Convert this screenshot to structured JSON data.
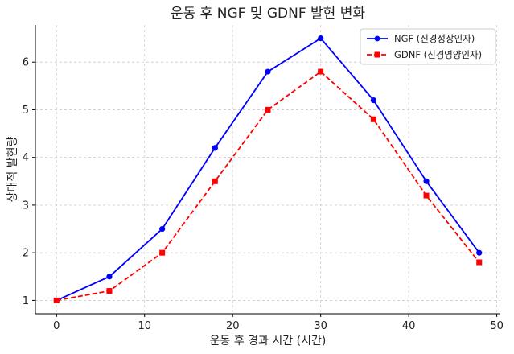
{
  "chart_data": {
    "type": "line",
    "title": "운동 후 NGF 및 GDNF 발현 변화",
    "xlabel": "운동 후 경과 시간 (시간)",
    "ylabel": "상대적 발현량",
    "xlim": [
      -2.4,
      50.4
    ],
    "ylim": [
      0.72,
      6.78
    ],
    "x_ticks": [
      0,
      10,
      20,
      30,
      40,
      50
    ],
    "y_ticks": [
      1,
      2,
      3,
      4,
      5,
      6
    ],
    "grid": true,
    "legend_position": "top-right",
    "x": [
      0,
      6,
      12,
      18,
      24,
      30,
      36,
      42,
      48
    ],
    "series": [
      {
        "name": "NGF (신경성장인자)",
        "values": [
          1.0,
          1.5,
          2.5,
          4.2,
          5.8,
          6.5,
          5.2,
          3.5,
          2.0
        ],
        "color": "#0000ff",
        "line_style": "solid",
        "marker": "circle"
      },
      {
        "name": "GDNF (신경영양인자)",
        "values": [
          1.0,
          1.2,
          2.0,
          3.5,
          5.0,
          5.8,
          4.8,
          3.2,
          1.8
        ],
        "color": "#ff0000",
        "line_style": "dashed",
        "marker": "square"
      }
    ]
  }
}
